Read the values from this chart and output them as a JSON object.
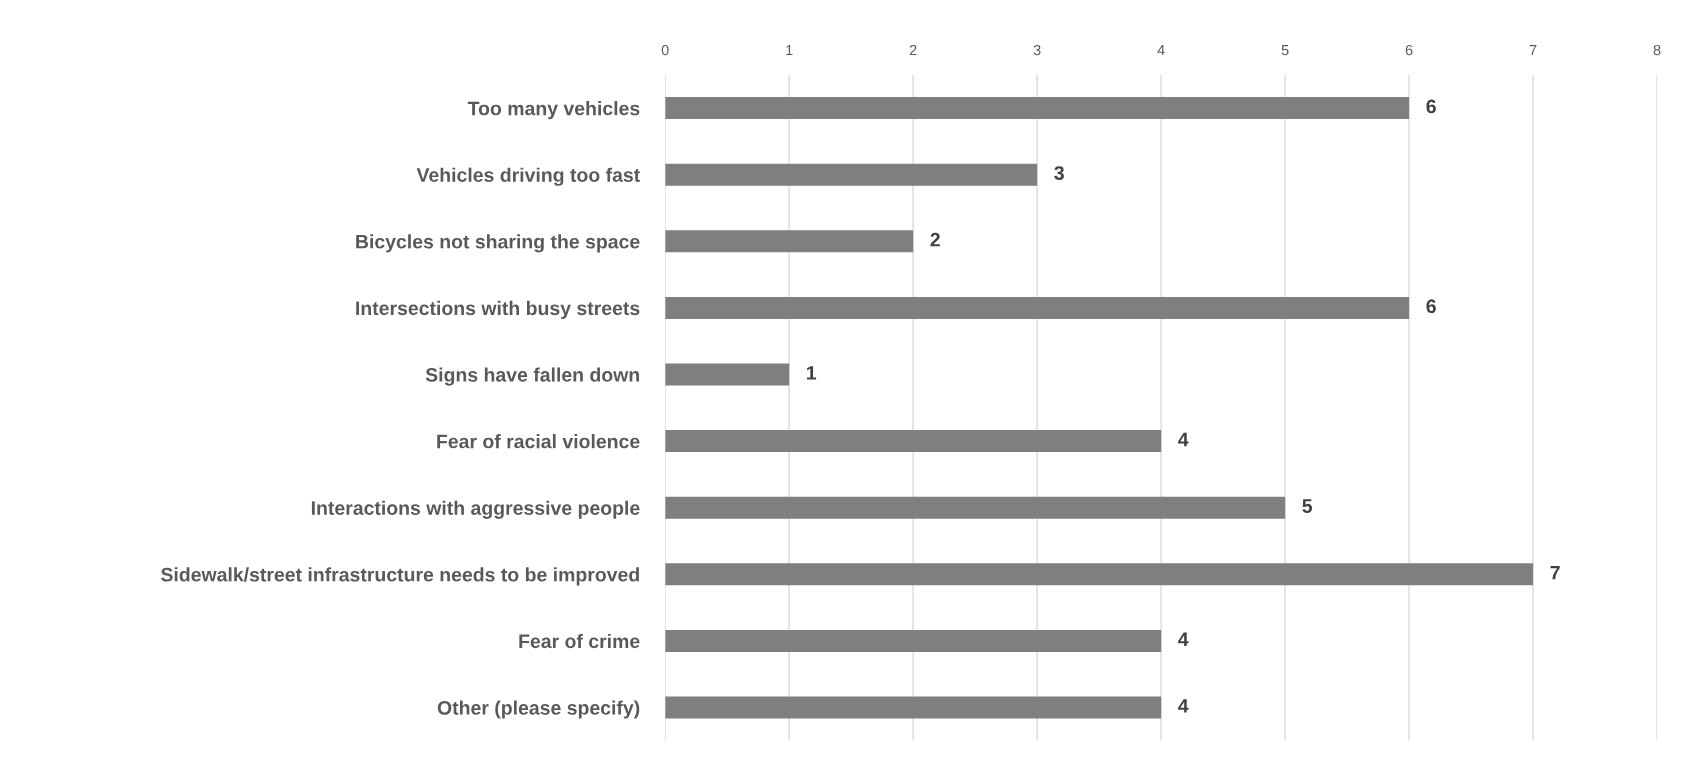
{
  "chart_data": {
    "type": "bar",
    "orientation": "horizontal",
    "categories": [
      "Too many vehicles",
      "Vehicles driving too fast",
      "Bicycles not sharing the space",
      "Intersections with busy streets",
      "Signs have fallen down",
      "Fear of racial violence",
      "Interactions with aggressive people",
      "Sidewalk/street infrastructure needs to be improved",
      "Fear of crime",
      "Other (please specify)"
    ],
    "values": [
      6,
      3,
      2,
      6,
      1,
      4,
      5,
      7,
      4,
      4
    ],
    "color": "#7f7f7f",
    "xlim": [
      0,
      8
    ],
    "xticks": [
      0,
      1,
      2,
      3,
      4,
      5,
      6,
      7,
      8
    ],
    "grid": "x",
    "data_labels": true,
    "legend": false
  }
}
